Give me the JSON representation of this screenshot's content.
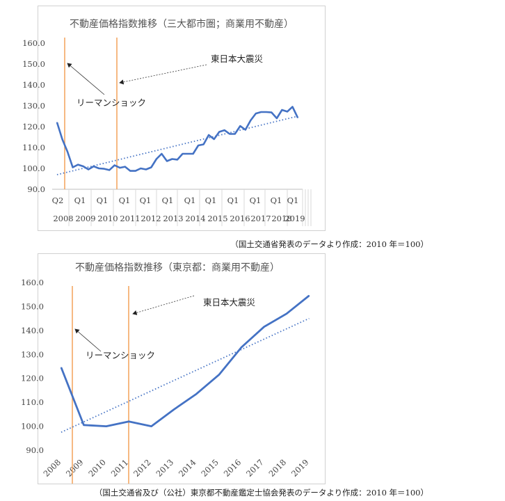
{
  "chart_data": [
    {
      "type": "line",
      "title": "不動産価格指数推移（三大都市圏；商業用不動産）",
      "ylim": [
        90,
        160
      ],
      "yticks": [
        "160.0",
        "150.0",
        "140.0",
        "130.0",
        "120.0",
        "110.0",
        "100.0",
        "90.0"
      ],
      "x_quarter_labels": [
        "Q2",
        "Q1",
        "Q1",
        "Q1",
        "Q1",
        "Q1",
        "Q1",
        "Q1",
        "Q1",
        "Q1",
        "Q1",
        "Q1"
      ],
      "x_year_labels": [
        "2008",
        "2009",
        "2010",
        "2011",
        "2012",
        "2013",
        "2014",
        "2015",
        "2016",
        "2017",
        "2018",
        "2019"
      ],
      "grid": false,
      "series": [
        {
          "color": "#4472C4",
          "values": [
            122,
            114,
            108,
            100.5,
            101.8,
            101,
            99.5,
            101,
            100,
            99.8,
            99.2,
            101.5,
            100.3,
            100.8,
            98.8,
            98.8,
            100,
            99.5,
            100.5,
            104.5,
            107,
            103.5,
            104.5,
            104.2,
            107,
            107,
            107,
            111,
            111.5,
            116,
            114,
            117.5,
            118.3,
            116.5,
            116.5,
            120.3,
            118.5,
            123,
            126.3,
            127,
            127,
            126.8,
            124,
            128,
            127.2,
            129.5,
            124.3
          ]
        }
      ],
      "trend": {
        "start": 97,
        "end": 125,
        "style": "dotted",
        "color": "#4472C4"
      },
      "annotations": [
        {
          "text": "東日本大震災"
        },
        {
          "text": "リーマンショック"
        }
      ],
      "event_lines_color": "#F4A259"
    },
    {
      "type": "line",
      "title": "不動産価格指数推移（東京都：商業用不動産）",
      "ylim": [
        90,
        160
      ],
      "yticks": [
        "160.0",
        "150.0",
        "140.0",
        "130.0",
        "120.0",
        "110.0",
        "100.0",
        "90.0"
      ],
      "categories": [
        "2008",
        "2009",
        "2010",
        "2011",
        "2012",
        "2013",
        "2014",
        "2015",
        "2016",
        "2017",
        "2018",
        "2019"
      ],
      "grid": false,
      "series": [
        {
          "color": "#4472C4",
          "values": [
            124.5,
            100.5,
            100,
            102,
            100,
            107,
            113.5,
            121.5,
            133,
            141.5,
            147,
            154.5
          ]
        }
      ],
      "trend": {
        "start": 97.5,
        "end": 145,
        "style": "dotted",
        "color": "#4472C4"
      },
      "annotations": [
        {
          "text": "東日本大震災"
        },
        {
          "text": "リーマンショック"
        }
      ],
      "event_lines_color": "#F4A259"
    }
  ],
  "captions": {
    "chart1": "（国土交通省発表のデータより作成：2010 年＝100）",
    "chart2": "（国土交通省及び（公社）東京都不動産鑑定士協会発表のデータより作成：2010 年＝100）"
  }
}
